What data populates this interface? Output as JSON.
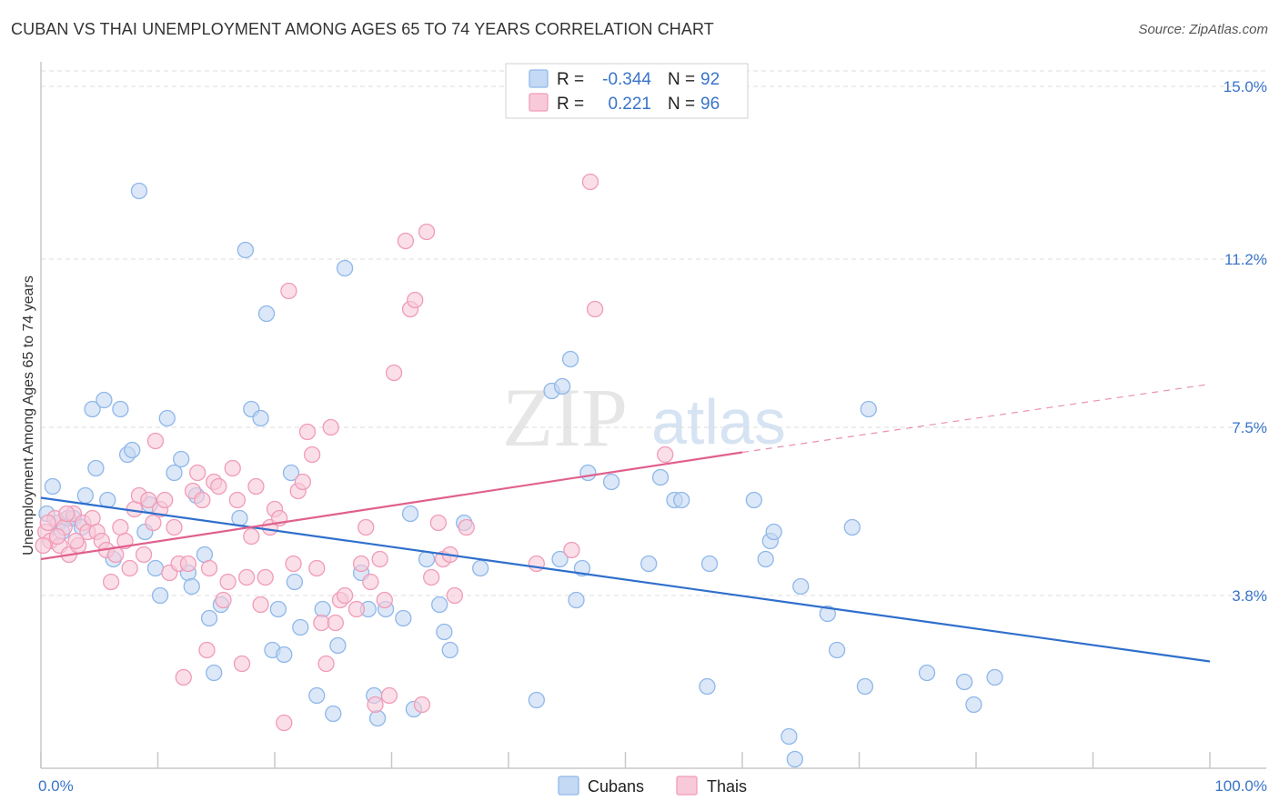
{
  "title": "CUBAN VS THAI UNEMPLOYMENT AMONG AGES 65 TO 74 YEARS CORRELATION CHART",
  "source": "Source: ZipAtlas.com",
  "watermark": {
    "zip": "ZIP",
    "atlas": "atlas"
  },
  "legend": {
    "r_label": "R =",
    "n_label": "N =",
    "rows": [
      {
        "name": "Cubans",
        "r": "-0.344",
        "n": "92",
        "color": "#8fb8ea",
        "fill": "#c4d9f4"
      },
      {
        "name": "Thais",
        "r": "0.221",
        "n": "96",
        "color": "#f09cb8",
        "fill": "#f8cad9"
      }
    ]
  },
  "bottom_legend": [
    "Cubans",
    "Thais"
  ],
  "chart_data": {
    "type": "scatter",
    "title": "CUBAN VS THAI UNEMPLOYMENT AMONG AGES 65 TO 74 YEARS CORRELATION CHART",
    "xlabel": "",
    "ylabel": "Unemployment Among Ages 65 to 74 years",
    "xlim": [
      0,
      100
    ],
    "ylim": [
      0.0,
      15.5
    ],
    "x_tick_labels": [
      "0.0%",
      "100.0%"
    ],
    "y_ticks": [
      3.8,
      7.5,
      11.2,
      15.0
    ],
    "y_tick_labels": [
      "3.8%",
      "7.5%",
      "11.2%",
      "15.0%"
    ],
    "grid": true,
    "series": [
      {
        "name": "Cubans",
        "color": "#8fb8ea",
        "fill": "#c4d9f4",
        "trend": {
          "x0": 0,
          "y0": 5.95,
          "x1": 100,
          "y1": 2.35,
          "color": "#2f6fcc"
        },
        "points": [
          [
            0.5,
            5.6
          ],
          [
            1.0,
            6.2
          ],
          [
            1.5,
            5.4
          ],
          [
            1.8,
            5.2
          ],
          [
            2.3,
            5.5
          ],
          [
            2.8,
            5.5
          ],
          [
            3.5,
            5.3
          ],
          [
            3.8,
            6.0
          ],
          [
            4.4,
            7.9
          ],
          [
            4.7,
            6.6
          ],
          [
            5.4,
            8.1
          ],
          [
            5.7,
            5.9
          ],
          [
            6.2,
            4.6
          ],
          [
            6.8,
            7.9
          ],
          [
            7.4,
            6.9
          ],
          [
            7.8,
            7.0
          ],
          [
            8.4,
            12.7
          ],
          [
            8.9,
            5.2
          ],
          [
            9.3,
            5.8
          ],
          [
            9.8,
            4.4
          ],
          [
            10.2,
            3.8
          ],
          [
            10.8,
            7.7
          ],
          [
            11.4,
            6.5
          ],
          [
            12.0,
            6.8
          ],
          [
            12.6,
            4.3
          ],
          [
            12.9,
            4.0
          ],
          [
            13.3,
            6.0
          ],
          [
            14.0,
            4.7
          ],
          [
            14.4,
            3.3
          ],
          [
            14.8,
            2.1
          ],
          [
            15.4,
            3.6
          ],
          [
            17.0,
            5.5
          ],
          [
            17.5,
            11.4
          ],
          [
            18.0,
            7.9
          ],
          [
            18.8,
            7.7
          ],
          [
            19.3,
            10.0
          ],
          [
            19.8,
            2.6
          ],
          [
            20.3,
            3.5
          ],
          [
            20.8,
            2.5
          ],
          [
            21.4,
            6.5
          ],
          [
            21.7,
            4.1
          ],
          [
            22.2,
            3.1
          ],
          [
            23.6,
            1.6
          ],
          [
            24.1,
            3.5
          ],
          [
            25.0,
            1.2
          ],
          [
            25.4,
            2.7
          ],
          [
            26.0,
            11.0
          ],
          [
            27.4,
            4.3
          ],
          [
            28.0,
            3.5
          ],
          [
            28.5,
            1.6
          ],
          [
            28.8,
            1.1
          ],
          [
            29.5,
            3.5
          ],
          [
            31.0,
            3.3
          ],
          [
            31.6,
            5.6
          ],
          [
            31.9,
            1.3
          ],
          [
            33.0,
            4.6
          ],
          [
            34.1,
            3.6
          ],
          [
            34.5,
            3.0
          ],
          [
            35.0,
            2.6
          ],
          [
            36.2,
            5.4
          ],
          [
            37.6,
            4.4
          ],
          [
            42.4,
            1.5
          ],
          [
            43.7,
            8.3
          ],
          [
            44.4,
            4.6
          ],
          [
            44.6,
            8.4
          ],
          [
            45.3,
            9.0
          ],
          [
            45.8,
            3.7
          ],
          [
            46.3,
            4.4
          ],
          [
            46.8,
            6.5
          ],
          [
            48.8,
            6.3
          ],
          [
            52.0,
            4.5
          ],
          [
            53.0,
            6.4
          ],
          [
            54.2,
            5.9
          ],
          [
            54.8,
            5.9
          ],
          [
            57.0,
            1.8
          ],
          [
            57.2,
            4.5
          ],
          [
            61.0,
            5.9
          ],
          [
            62.0,
            4.6
          ],
          [
            62.4,
            5.0
          ],
          [
            62.7,
            5.2
          ],
          [
            64.0,
            0.7
          ],
          [
            64.5,
            0.2
          ],
          [
            65.0,
            4.0
          ],
          [
            67.3,
            3.4
          ],
          [
            68.1,
            2.6
          ],
          [
            69.4,
            5.3
          ],
          [
            70.5,
            1.8
          ],
          [
            70.8,
            7.9
          ],
          [
            75.8,
            2.1
          ],
          [
            79.0,
            1.9
          ],
          [
            79.8,
            1.4
          ],
          [
            81.6,
            2.0
          ]
        ]
      },
      {
        "name": "Thais",
        "color": "#f09cb8",
        "fill": "#f8cad9",
        "trend": {
          "x0": 0,
          "y0": 4.6,
          "x1": 60,
          "y1": 6.95,
          "dash_x1": 100,
          "dash_y1": 8.45,
          "color": "#e0608e"
        },
        "points": [
          [
            0.4,
            5.2
          ],
          [
            0.8,
            5.0
          ],
          [
            1.2,
            5.5
          ],
          [
            1.6,
            4.9
          ],
          [
            2.0,
            5.3
          ],
          [
            2.4,
            4.7
          ],
          [
            2.8,
            5.6
          ],
          [
            3.2,
            4.9
          ],
          [
            3.6,
            5.4
          ],
          [
            4.0,
            5.2
          ],
          [
            4.4,
            5.5
          ],
          [
            4.8,
            5.2
          ],
          [
            5.2,
            5.0
          ],
          [
            5.6,
            4.8
          ],
          [
            6.0,
            4.1
          ],
          [
            6.4,
            4.7
          ],
          [
            6.8,
            5.3
          ],
          [
            7.2,
            5.0
          ],
          [
            7.6,
            4.4
          ],
          [
            8.0,
            5.7
          ],
          [
            8.4,
            6.0
          ],
          [
            8.8,
            4.7
          ],
          [
            9.2,
            5.9
          ],
          [
            9.6,
            5.4
          ],
          [
            9.8,
            7.2
          ],
          [
            10.2,
            5.7
          ],
          [
            10.6,
            5.9
          ],
          [
            11.0,
            4.3
          ],
          [
            11.4,
            5.3
          ],
          [
            11.8,
            4.5
          ],
          [
            12.2,
            2.0
          ],
          [
            12.6,
            4.5
          ],
          [
            13.0,
            6.1
          ],
          [
            13.4,
            6.5
          ],
          [
            13.8,
            5.9
          ],
          [
            14.2,
            2.6
          ],
          [
            14.4,
            4.4
          ],
          [
            14.8,
            6.3
          ],
          [
            15.2,
            6.2
          ],
          [
            15.6,
            3.7
          ],
          [
            16.0,
            4.1
          ],
          [
            16.4,
            6.6
          ],
          [
            16.8,
            5.9
          ],
          [
            17.2,
            2.3
          ],
          [
            17.6,
            4.2
          ],
          [
            18.0,
            5.1
          ],
          [
            18.4,
            6.2
          ],
          [
            18.8,
            3.6
          ],
          [
            19.2,
            4.2
          ],
          [
            19.6,
            5.3
          ],
          [
            20.0,
            5.7
          ],
          [
            20.4,
            5.5
          ],
          [
            20.8,
            1.0
          ],
          [
            21.2,
            10.5
          ],
          [
            21.6,
            4.5
          ],
          [
            22.0,
            6.1
          ],
          [
            22.4,
            6.3
          ],
          [
            22.8,
            7.4
          ],
          [
            23.2,
            6.9
          ],
          [
            23.6,
            4.4
          ],
          [
            24.0,
            3.2
          ],
          [
            24.4,
            2.3
          ],
          [
            24.8,
            7.5
          ],
          [
            25.2,
            3.2
          ],
          [
            25.6,
            3.7
          ],
          [
            26.0,
            3.8
          ],
          [
            27.0,
            3.5
          ],
          [
            27.4,
            4.5
          ],
          [
            27.8,
            5.3
          ],
          [
            28.2,
            4.1
          ],
          [
            28.6,
            1.4
          ],
          [
            29.0,
            4.6
          ],
          [
            29.4,
            3.7
          ],
          [
            29.8,
            1.6
          ],
          [
            30.2,
            8.7
          ],
          [
            31.2,
            11.6
          ],
          [
            31.6,
            10.1
          ],
          [
            32.0,
            10.3
          ],
          [
            32.6,
            1.4
          ],
          [
            33.0,
            11.8
          ],
          [
            33.4,
            4.2
          ],
          [
            34.0,
            5.4
          ],
          [
            34.4,
            4.6
          ],
          [
            35.0,
            4.7
          ],
          [
            35.4,
            3.8
          ],
          [
            36.4,
            5.3
          ],
          [
            42.4,
            4.5
          ],
          [
            45.4,
            4.8
          ],
          [
            47.0,
            12.9
          ],
          [
            47.4,
            10.1
          ],
          [
            53.4,
            6.9
          ],
          [
            0.2,
            4.9
          ],
          [
            0.6,
            5.4
          ],
          [
            1.4,
            5.1
          ],
          [
            2.2,
            5.6
          ],
          [
            3.0,
            5.0
          ]
        ]
      }
    ]
  }
}
